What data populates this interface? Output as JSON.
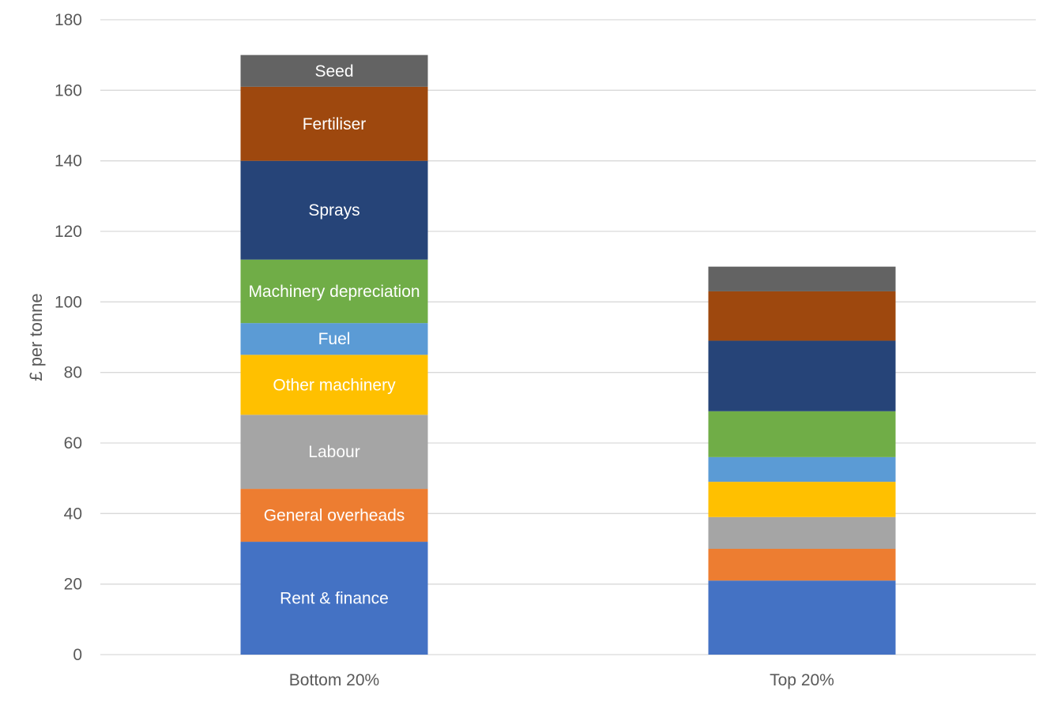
{
  "chart_data": {
    "type": "bar",
    "stacked": true,
    "title": "",
    "xlabel": "",
    "ylabel": "£ per tonne",
    "ylim": [
      0,
      180
    ],
    "yticks": [
      0,
      20,
      40,
      60,
      80,
      100,
      120,
      140,
      160,
      180
    ],
    "grid": true,
    "legend": "none",
    "categories": [
      "Bottom 20%",
      "Top 20%"
    ],
    "series": [
      {
        "name": "Rent & finance",
        "color": "#4472c4",
        "values": [
          32,
          21
        ]
      },
      {
        "name": "General overheads",
        "color": "#ed7d31",
        "values": [
          15,
          9
        ]
      },
      {
        "name": "Labour",
        "color": "#a5a5a5",
        "values": [
          21,
          9
        ]
      },
      {
        "name": "Other machinery",
        "color": "#ffc000",
        "values": [
          17,
          10
        ]
      },
      {
        "name": "Fuel",
        "color": "#5b9bd5",
        "values": [
          9,
          7
        ]
      },
      {
        "name": "Machinery depreciation",
        "color": "#70ad47",
        "values": [
          18,
          13
        ]
      },
      {
        "name": "Sprays",
        "color": "#264478",
        "values": [
          28,
          20
        ]
      },
      {
        "name": "Fertiliser",
        "color": "#9e480e",
        "values": [
          21,
          14
        ]
      },
      {
        "name": "Seed",
        "color": "#636363",
        "values": [
          9,
          7
        ]
      }
    ],
    "segment_labels_shown_on": "Bottom 20%"
  }
}
